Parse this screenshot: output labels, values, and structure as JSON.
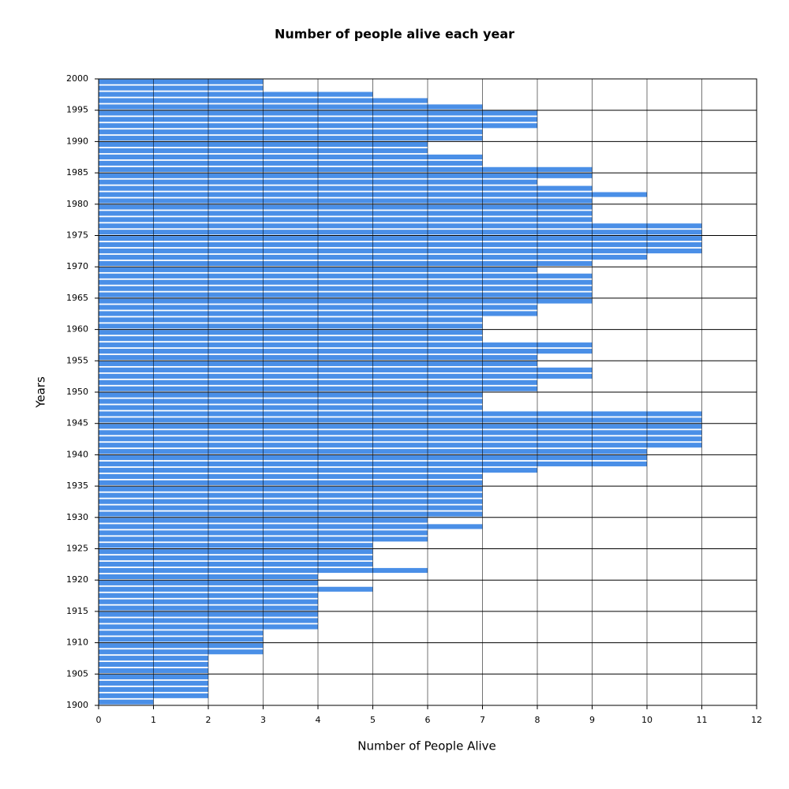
{
  "chart_data": {
    "type": "bar",
    "orientation": "horizontal",
    "title": "Number of people alive each year",
    "xlabel": "Number of People Alive",
    "ylabel": "Years",
    "y": [
      1900,
      1901,
      1902,
      1903,
      1904,
      1905,
      1906,
      1907,
      1908,
      1909,
      1910,
      1911,
      1912,
      1913,
      1914,
      1915,
      1916,
      1917,
      1918,
      1919,
      1920,
      1921,
      1922,
      1923,
      1924,
      1925,
      1926,
      1927,
      1928,
      1929,
      1930,
      1931,
      1932,
      1933,
      1934,
      1935,
      1936,
      1937,
      1938,
      1939,
      1940,
      1941,
      1942,
      1943,
      1944,
      1945,
      1946,
      1947,
      1948,
      1949,
      1950,
      1951,
      1952,
      1953,
      1954,
      1955,
      1956,
      1957,
      1958,
      1959,
      1960,
      1961,
      1962,
      1963,
      1964,
      1965,
      1966,
      1967,
      1968,
      1969,
      1970,
      1971,
      1972,
      1973,
      1974,
      1975,
      1976,
      1977,
      1978,
      1979,
      1980,
      1981,
      1982,
      1983,
      1984,
      1985,
      1986,
      1987,
      1988,
      1989,
      1990,
      1991,
      1992,
      1993,
      1994,
      1995,
      1996,
      1997,
      1998,
      1999
    ],
    "values": [
      1,
      2,
      2,
      2,
      2,
      2,
      2,
      2,
      3,
      3,
      3,
      3,
      4,
      4,
      4,
      4,
      4,
      4,
      5,
      4,
      4,
      6,
      5,
      5,
      5,
      5,
      6,
      6,
      7,
      6,
      7,
      7,
      7,
      7,
      7,
      7,
      7,
      8,
      10,
      10,
      10,
      11,
      11,
      11,
      11,
      11,
      11,
      7,
      7,
      7,
      8,
      8,
      9,
      9,
      8,
      8,
      9,
      9,
      7,
      7,
      7,
      7,
      8,
      8,
      9,
      9,
      9,
      9,
      9,
      8,
      9,
      10,
      11,
      11,
      11,
      11,
      11,
      9,
      9,
      9,
      9,
      10,
      9,
      8,
      9,
      9,
      7,
      7,
      6,
      6,
      7,
      7,
      8,
      8,
      8,
      7,
      6,
      5,
      3,
      3
    ],
    "color": "#4a8fe7",
    "xlim": [
      0,
      12
    ],
    "xticks": [
      0,
      1,
      2,
      3,
      4,
      5,
      6,
      7,
      8,
      9,
      10,
      11,
      12
    ],
    "ylim": [
      1900,
      2000
    ],
    "yticks": [
      1900,
      1905,
      1910,
      1915,
      1920,
      1925,
      1930,
      1935,
      1940,
      1945,
      1950,
      1955,
      1960,
      1965,
      1970,
      1975,
      1980,
      1985,
      1990,
      1995,
      2000
    ],
    "grid": true
  }
}
